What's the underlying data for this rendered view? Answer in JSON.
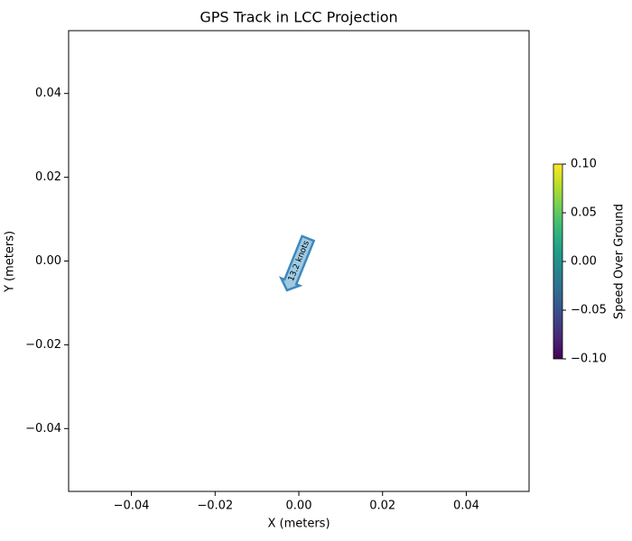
{
  "chart_data": {
    "type": "scatter",
    "title": "GPS Track in LCC Projection",
    "x_label": "X (meters)",
    "y_label": "Y (meters)",
    "xlim": [
      -0.055,
      0.055
    ],
    "ylim": [
      -0.055,
      0.055
    ],
    "xticks": [
      {
        "value": -0.04,
        "label": "−0.04"
      },
      {
        "value": -0.02,
        "label": "−0.02"
      },
      {
        "value": 0,
        "label": "0.00"
      },
      0.02,
      0.04
    ],
    "yticks": [
      {
        "value": -0.04,
        "label": "−0.04"
      },
      {
        "value": -0.02,
        "label": "−0.02"
      },
      {
        "value": 0,
        "label": "0.00"
      },
      0.02,
      0.04
    ],
    "annotations": [
      {
        "x": 0,
        "y": 0,
        "text": "13.2 knots"
      }
    ],
    "colorbar": {
      "label": "Speed Over Ground",
      "colormap": "viridis",
      "clim": [
        -0.1,
        0.1
      ],
      "ticks": [
        {
          "value": -0.1,
          "label": "−0.10"
        },
        {
          "value": -0.05,
          "label": "−0.05"
        },
        {
          "value": 0,
          "label": "0.00"
        },
        0.05,
        {
          "value": 0.1,
          "label": "0.10"
        }
      ]
    }
  }
}
